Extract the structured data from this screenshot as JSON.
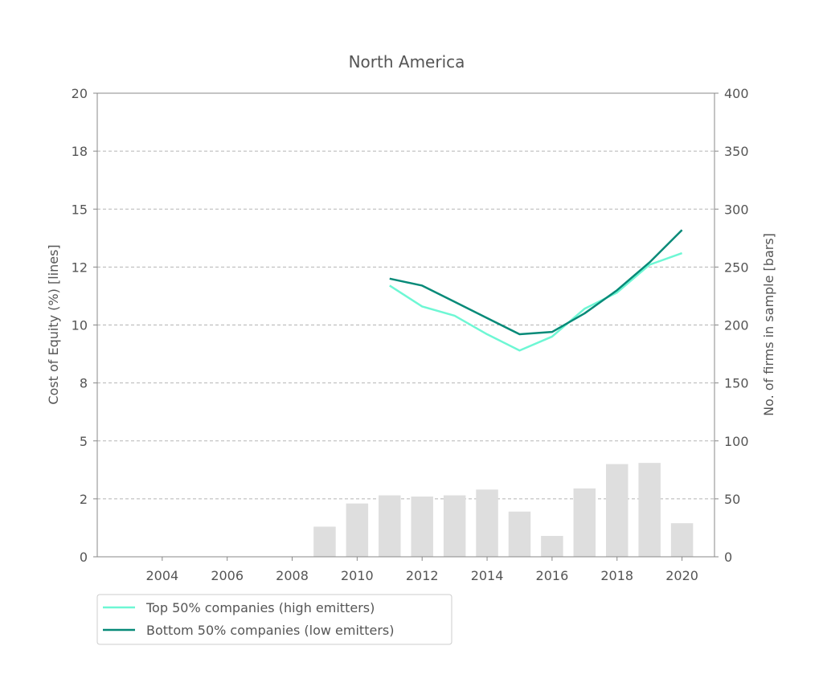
{
  "chart_data": {
    "type": "line+bar",
    "title": "North America",
    "ylabel_left": "Cost of Equity (%) [lines]",
    "ylabel_right": "No. of firms in sample [bars]",
    "xlim": [
      2002,
      2021
    ],
    "ylim_left": [
      0,
      20
    ],
    "ylim_right": [
      0,
      400
    ],
    "x_ticks": [
      2004,
      2006,
      2008,
      2010,
      2012,
      2014,
      2016,
      2018,
      2020
    ],
    "y_left_ticks": [
      0,
      2.5,
      5,
      7.5,
      10,
      12.5,
      15,
      17.5,
      20
    ],
    "y_left_tick_labels": [
      "0",
      "2",
      "5",
      "8",
      "10",
      "12",
      "15",
      "18",
      "20"
    ],
    "y_right_ticks": [
      0,
      50,
      100,
      150,
      200,
      250,
      300,
      350,
      400
    ],
    "y_right_tick_labels": [
      "0",
      "50",
      "100",
      "150",
      "200",
      "250",
      "300",
      "350",
      "400"
    ],
    "grid": "horizontal dashed",
    "legend_position": "bottom-left below plot",
    "bars": {
      "axis": "right",
      "color": "#dedede",
      "x": [
        2009,
        2010,
        2011,
        2012,
        2013,
        2014,
        2015,
        2016,
        2017,
        2018,
        2019,
        2020
      ],
      "values": [
        26,
        46,
        53,
        52,
        53,
        58,
        39,
        18,
        59,
        80,
        81,
        29
      ]
    },
    "series": [
      {
        "name": "Top 50% companies (high emitters)",
        "axis": "left",
        "color": "#6ef7d4",
        "x": [
          2011,
          2012,
          2013,
          2014,
          2015,
          2016,
          2017,
          2018,
          2019,
          2020
        ],
        "values": [
          11.7,
          10.8,
          10.4,
          9.6,
          8.9,
          9.5,
          10.7,
          11.4,
          12.6,
          13.1
        ]
      },
      {
        "name": "Bottom 50% companies (low emitters)",
        "axis": "left",
        "color": "#078a78",
        "x": [
          2011,
          2012,
          2013,
          2014,
          2015,
          2016,
          2017,
          2018,
          2019,
          2020
        ],
        "values": [
          12.0,
          11.7,
          11.0,
          10.3,
          9.6,
          9.7,
          10.5,
          11.5,
          12.7,
          14.1
        ]
      }
    ]
  }
}
